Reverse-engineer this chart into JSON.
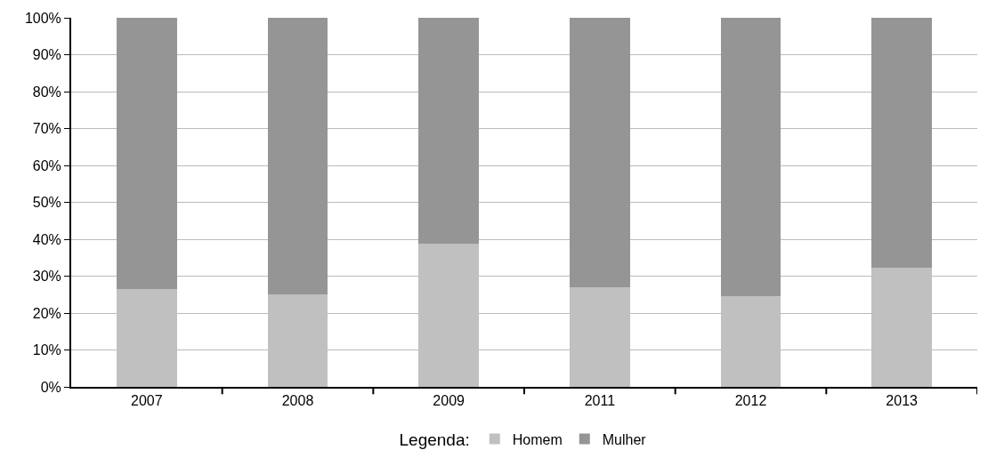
{
  "chart_data": {
    "type": "bar",
    "stacked": true,
    "categories": [
      "2007",
      "2008",
      "2009",
      "2011",
      "2012",
      "2013"
    ],
    "series": [
      {
        "name": "Homem",
        "color": "#c0c0c0",
        "values": [
          26.5,
          25,
          38.7,
          26.9,
          24.5,
          32.4
        ]
      },
      {
        "name": "Mulher",
        "color": "#959595",
        "values": [
          73.5,
          75,
          61.3,
          73.1,
          75.5,
          67.6
        ]
      }
    ],
    "ylim": [
      0,
      100
    ],
    "yticks": [
      {
        "value": 0,
        "label": "0%"
      },
      {
        "value": 10,
        "label": "10%"
      },
      {
        "value": 20,
        "label": "20%"
      },
      {
        "value": 30,
        "label": "30%"
      },
      {
        "value": 40,
        "label": "40%"
      },
      {
        "value": 50,
        "label": "50%"
      },
      {
        "value": 60,
        "label": "60%"
      },
      {
        "value": 70,
        "label": "70%"
      },
      {
        "value": 80,
        "label": "80%"
      },
      {
        "value": 90,
        "label": "90%"
      },
      {
        "value": 100,
        "label": "100%"
      }
    ],
    "grid": "y",
    "legend": "bottom",
    "legend_title": "Legenda:"
  }
}
